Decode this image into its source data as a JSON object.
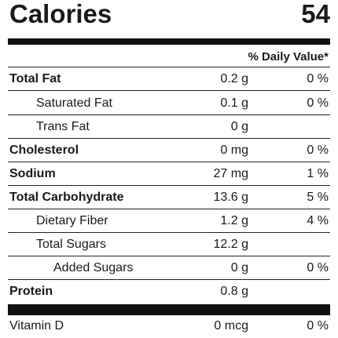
{
  "calories": {
    "label": "Calories",
    "value": "54"
  },
  "header": {
    "daily_value": "% Daily Value*"
  },
  "rows": [
    {
      "name": "Total Fat",
      "amount": "0.2 g",
      "dv": "0 %"
    },
    {
      "name": "Saturated Fat",
      "amount": "0.1 g",
      "dv": "0 %"
    },
    {
      "name": "Trans Fat",
      "amount": "0 g",
      "dv": ""
    },
    {
      "name": "Cholesterol",
      "amount": "0 mg",
      "dv": "0 %"
    },
    {
      "name": "Sodium",
      "amount": "27 mg",
      "dv": "1 %"
    },
    {
      "name": "Total Carbohydrate",
      "amount": "13.6 g",
      "dv": "5 %"
    },
    {
      "name": "Dietary Fiber",
      "amount": "1.2 g",
      "dv": "4 %"
    },
    {
      "name": "Total Sugars",
      "amount": "12.2 g",
      "dv": ""
    },
    {
      "name": "Added Sugars",
      "amount": "0 g",
      "dv": "0 %"
    },
    {
      "name": "Protein",
      "amount": "0.8 g",
      "dv": ""
    }
  ],
  "vitamins": [
    {
      "name": "Vitamin D",
      "amount": "0 mcg",
      "dv": "0 %"
    }
  ]
}
